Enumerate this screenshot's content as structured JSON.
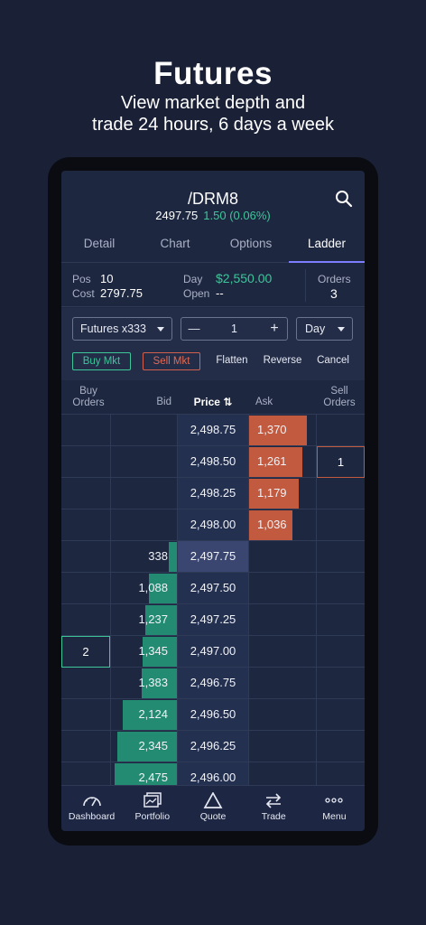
{
  "hero": {
    "title": "Futures",
    "subtitle_line1": "View market depth and",
    "subtitle_line2": "trade 24 hours, 6 days a week"
  },
  "header": {
    "symbol": "/DRM8",
    "last": "2497.75",
    "change": "1.50 (0.06%)"
  },
  "tabs": [
    {
      "label": "Detail",
      "active": false
    },
    {
      "label": "Chart",
      "active": false
    },
    {
      "label": "Options",
      "active": false
    },
    {
      "label": "Ladder",
      "active": true
    }
  ],
  "position": {
    "pos_label": "Pos",
    "pos_value": "10",
    "cost_label": "Cost",
    "cost_value": "2797.75",
    "day_label": "Day",
    "day_value": "$2,550.00",
    "open_label": "Open",
    "open_value": "--",
    "orders_label": "Orders",
    "orders_value": "3"
  },
  "order_entry": {
    "account": "Futures x333",
    "qty_minus": "—",
    "quantity": "1",
    "qty_plus": "+",
    "tif": "Day",
    "buy_mkt": "Buy Mkt",
    "sell_mkt": "Sell Mkt",
    "flatten": "Flatten",
    "reverse": "Reverse",
    "cancel": "Cancel"
  },
  "ladder_header": {
    "buy_orders_1": "Buy",
    "buy_orders_2": "Orders",
    "bid": "Bid",
    "price": "Price",
    "price_icon": "⇅",
    "ask": "Ask",
    "sell_orders_1": "Sell",
    "sell_orders_2": "Orders"
  },
  "ladder": [
    {
      "price": "2,498.75",
      "ask": "1,370",
      "ask_size": 1370
    },
    {
      "price": "2,498.50",
      "ask": "1,261",
      "ask_size": 1261,
      "sell_orders": "1"
    },
    {
      "price": "2,498.25",
      "ask": "1,179",
      "ask_size": 1179
    },
    {
      "price": "2,498.00",
      "ask": "1,036",
      "ask_size": 1036
    },
    {
      "price": "2,497.75",
      "bid": "338",
      "bid_size": 338,
      "last": true
    },
    {
      "price": "2,497.50",
      "bid": "1,088",
      "bid_size": 1088
    },
    {
      "price": "2,497.25",
      "bid": "1,237",
      "bid_size": 1237
    },
    {
      "price": "2,497.00",
      "bid": "1,345",
      "bid_size": 1345,
      "buy_orders": "2"
    },
    {
      "price": "2,496.75",
      "bid": "1,383",
      "bid_size": 1383
    },
    {
      "price": "2,496.50",
      "bid": "2,124",
      "bid_size": 2124
    },
    {
      "price": "2,496.25",
      "bid": "2,345",
      "bid_size": 2345
    },
    {
      "price": "2,496.00",
      "bid": "2,475",
      "bid_size": 2475
    }
  ],
  "nav": [
    {
      "label": "Dashboard",
      "icon": "gauge-icon"
    },
    {
      "label": "Portfolio",
      "icon": "portfolio-icon"
    },
    {
      "label": "Quote",
      "icon": "triangle-icon"
    },
    {
      "label": "Trade",
      "icon": "trade-arrows-icon"
    },
    {
      "label": "Menu",
      "icon": "more-dots-icon"
    }
  ],
  "colors": {
    "green": "#3ec59a",
    "bid_bar": "#238b71",
    "ask_bar": "#c25a3f",
    "tab_underline": "#7d7dff"
  }
}
